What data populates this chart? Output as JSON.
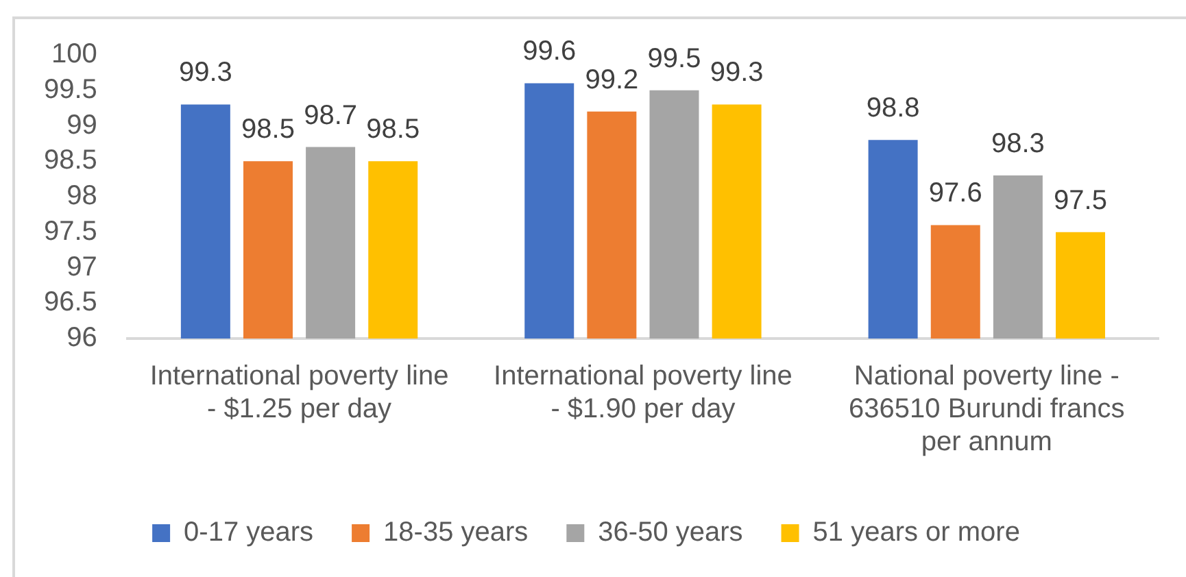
{
  "chart_data": {
    "type": "bar",
    "categories": [
      "International poverty line - $1.25 per day",
      "International poverty line - $1.90 per day",
      "National poverty line - 636510 Burundi francs per annum"
    ],
    "series": [
      {
        "name": "0-17 years",
        "color": "#4472c4",
        "values": [
          99.3,
          99.6,
          98.8
        ]
      },
      {
        "name": "18-35 years",
        "color": "#ed7d31",
        "values": [
          98.5,
          99.2,
          97.6
        ]
      },
      {
        "name": "36-50 years",
        "color": "#a5a5a5",
        "values": [
          98.7,
          99.5,
          98.3
        ]
      },
      {
        "name": "51 years or more",
        "color": "#ffc000",
        "values": [
          98.5,
          99.3,
          97.5
        ]
      }
    ],
    "ylim": [
      96,
      100
    ],
    "yticks": [
      96,
      96.5,
      97,
      97.5,
      98,
      98.5,
      99,
      99.5,
      100
    ],
    "data_labels": true,
    "grid": false,
    "legend": "bottom"
  }
}
